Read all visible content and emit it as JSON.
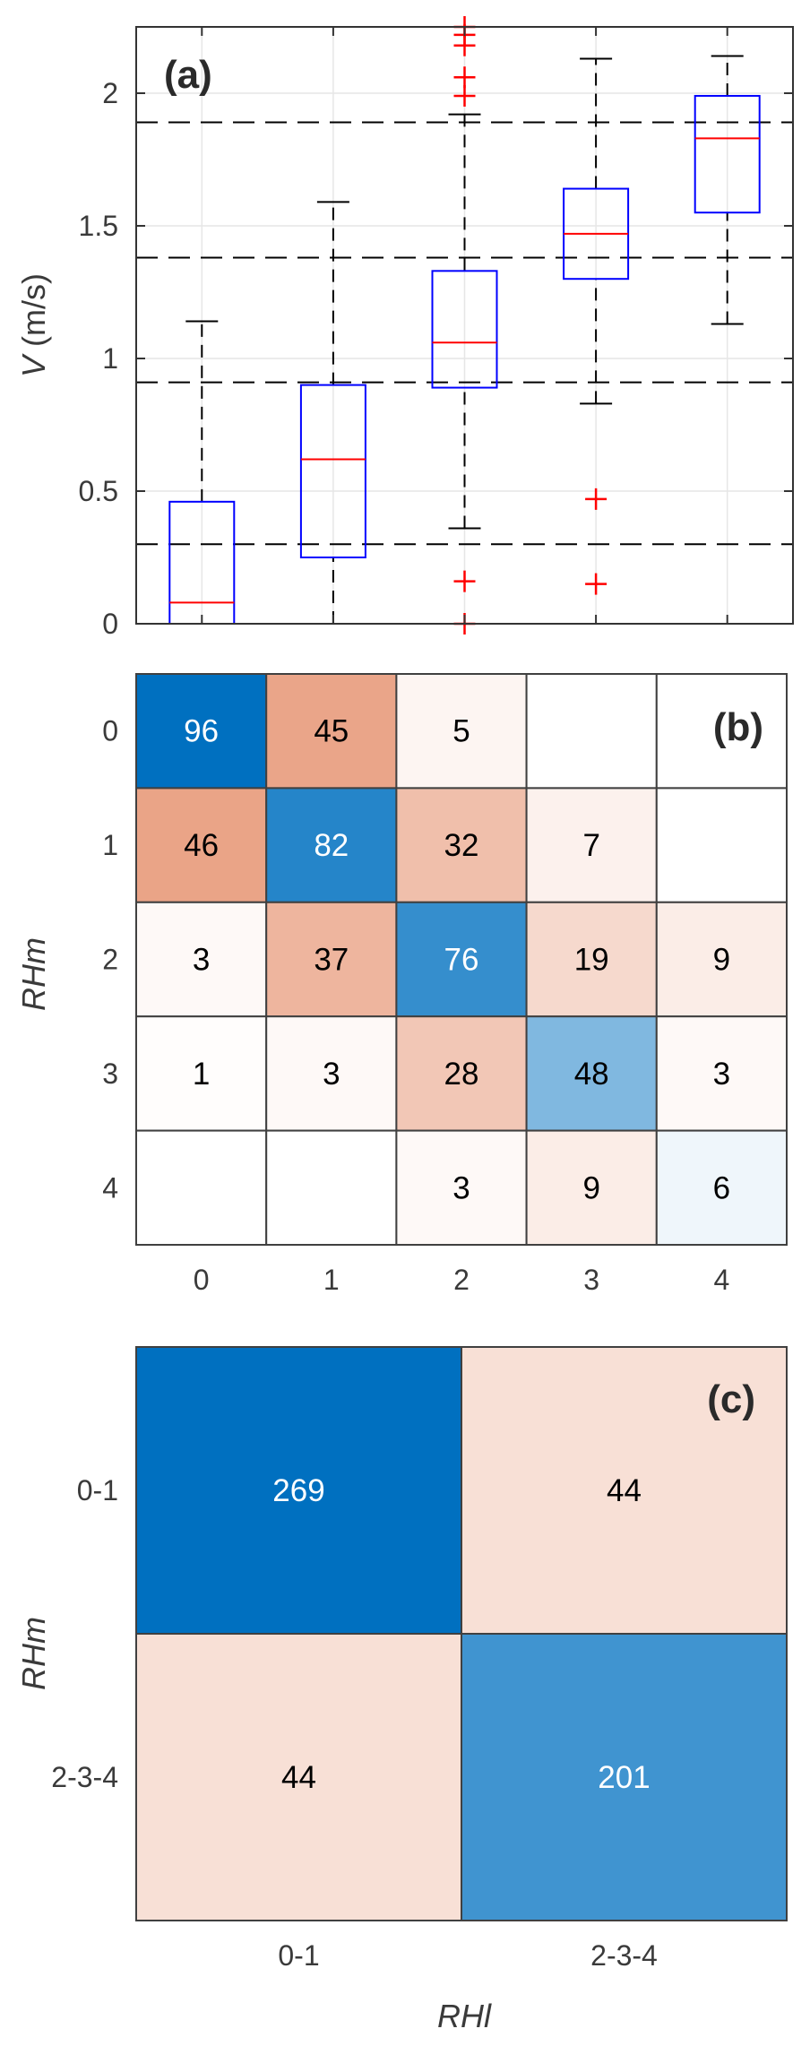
{
  "colors": {
    "box": "#0000ff",
    "median": "#ff0000",
    "outlier": "#ff0000",
    "whisker": "#000000",
    "threshold": "#000000",
    "grid": "#e6e6e6",
    "blue_max": "#0070c0",
    "salmon_max": "#eaa487",
    "text_on_dark": "#ffffff",
    "text_on_light": "#000000"
  },
  "chart_data": [
    {
      "type": "box",
      "panel_label": "(a)",
      "ylabel_symbol": "V",
      "ylabel_unit": " (m/s)",
      "categories": [
        "0",
        "1",
        "2",
        "3",
        "4"
      ],
      "show_category_labels": false,
      "ylim": [
        0,
        2.25
      ],
      "yticks": [
        "0",
        "0.5",
        "1",
        "1.5",
        "2"
      ],
      "grid": true,
      "thresholds": [
        0.3,
        0.91,
        1.38,
        1.89
      ],
      "boxes": [
        {
          "category": "0",
          "whisker_low": 0,
          "q1": 0,
          "median": 0.08,
          "q3": 0.46,
          "whisker_high": 1.14,
          "outliers": []
        },
        {
          "category": "1",
          "whisker_low": 0,
          "q1": 0.25,
          "median": 0.62,
          "q3": 0.9,
          "whisker_high": 1.59,
          "outliers": []
        },
        {
          "category": "2",
          "whisker_low": 0.36,
          "q1": 0.89,
          "median": 1.06,
          "q3": 1.33,
          "whisker_high": 1.92,
          "outliers": [
            0,
            0.16,
            1.99,
            2.06,
            2.18,
            2.22,
            2.25
          ]
        },
        {
          "category": "3",
          "whisker_low": 0.83,
          "q1": 1.3,
          "median": 1.47,
          "q3": 1.64,
          "whisker_high": 2.13,
          "outliers": [
            0.15,
            0.47
          ]
        },
        {
          "category": "4",
          "whisker_low": 1.13,
          "q1": 1.55,
          "median": 1.83,
          "q3": 1.99,
          "whisker_high": 2.14,
          "outliers": []
        }
      ]
    },
    {
      "type": "heatmap",
      "panel_label": "(b)",
      "ylabel": "RHm",
      "xlabel": "",
      "x_categories": [
        "0",
        "1",
        "2",
        "3",
        "4"
      ],
      "y_categories": [
        "0",
        "1",
        "2",
        "3",
        "4"
      ],
      "max_value": 96,
      "values": [
        [
          96,
          45,
          5,
          null,
          null
        ],
        [
          46,
          82,
          32,
          7,
          null
        ],
        [
          3,
          37,
          76,
          19,
          9
        ],
        [
          1,
          3,
          28,
          48,
          3
        ],
        [
          null,
          null,
          3,
          9,
          6
        ]
      ]
    },
    {
      "type": "heatmap",
      "panel_label": "(c)",
      "ylabel": "RHm",
      "xlabel": "RHl",
      "x_categories": [
        "0-1",
        "2-3-4"
      ],
      "y_categories": [
        "0-1",
        "2-3-4"
      ],
      "max_value": 269,
      "values": [
        [
          269,
          44
        ],
        [
          44,
          201
        ]
      ]
    }
  ]
}
